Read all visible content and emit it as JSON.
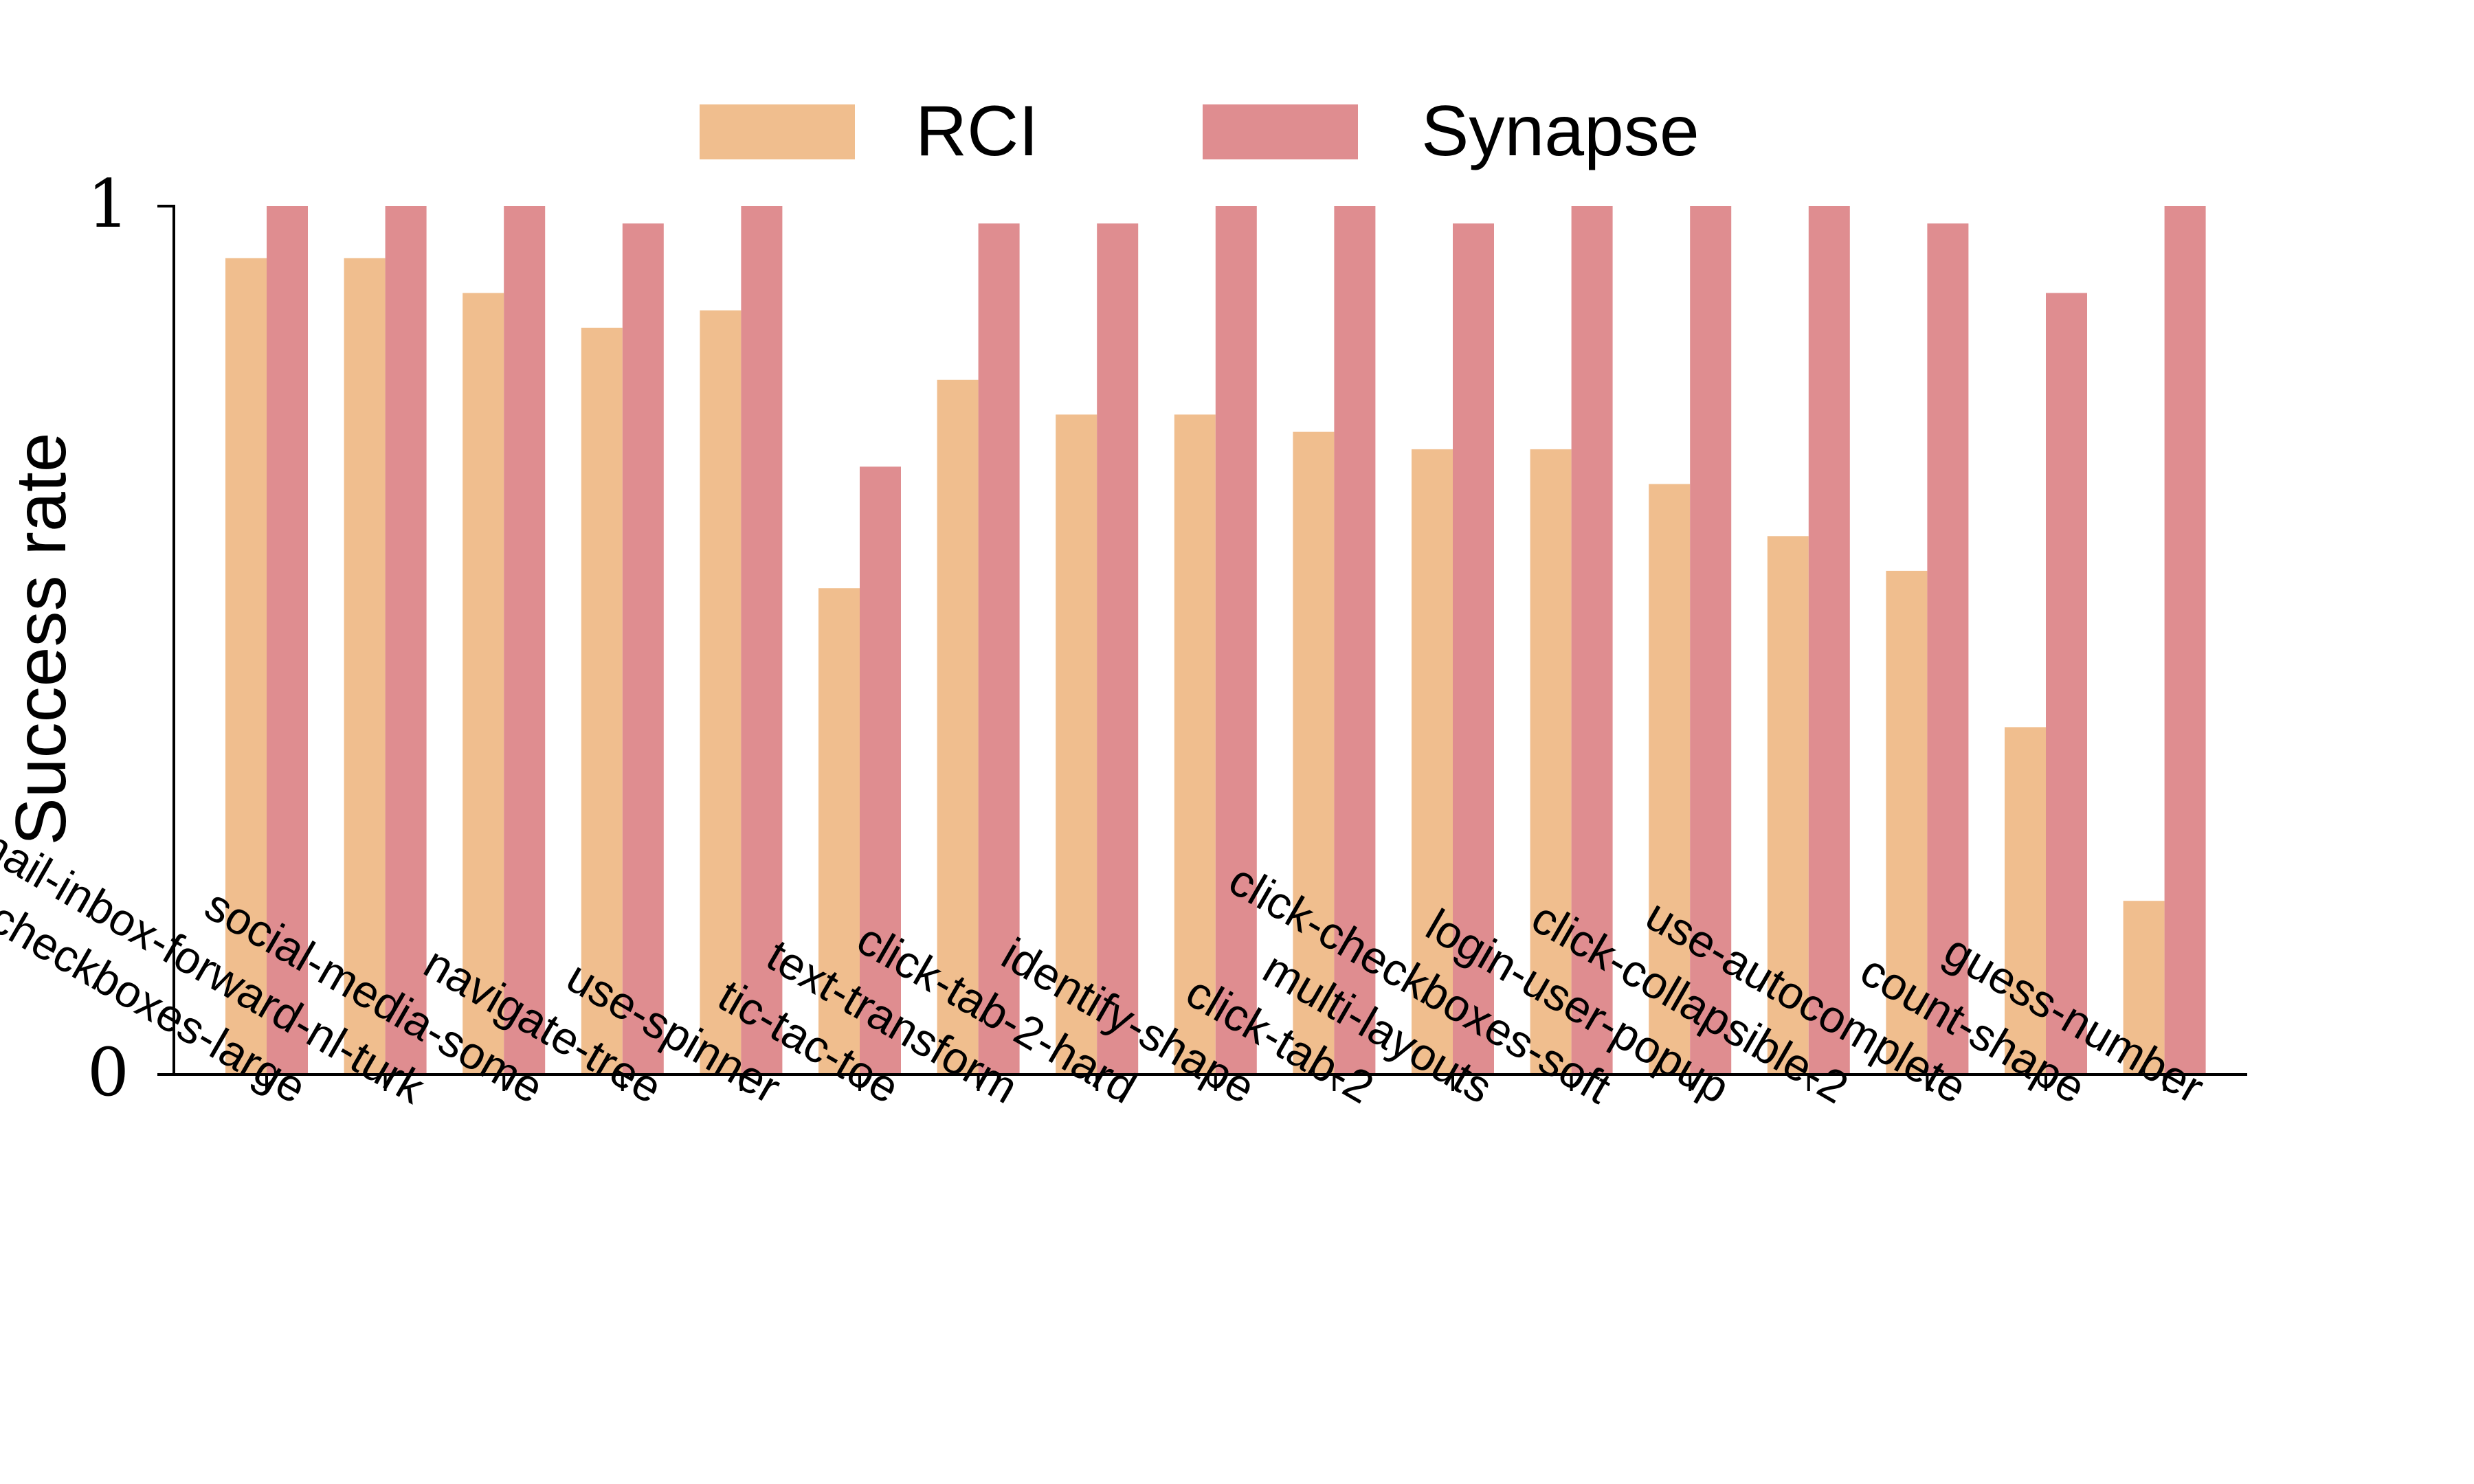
{
  "chart_data": {
    "type": "bar",
    "ylabel": "Success rate",
    "xlabel": "",
    "ylim": [
      0,
      1
    ],
    "yticks": [
      "0",
      "1"
    ],
    "legend_position": "top-center",
    "grid": false,
    "categories": [
      "click-checkboxes-large",
      "email-inbox-forward-nl-turk",
      "social-media-some",
      "navigate-tree",
      "use-spinner",
      "tic-tac-toe",
      "text-transform",
      "click-tab-2-hard",
      "identify-shape",
      "click-tab-2",
      "multi-layouts",
      "click-checkboxes-soft",
      "login-user-popup",
      "click-collapsible-2",
      "use-autocomplete",
      "count-shape",
      "guess-number"
    ],
    "series": [
      {
        "name": "RCI",
        "color": "#f0be8e",
        "values": [
          0.94,
          0.94,
          0.9,
          0.86,
          0.88,
          0.56,
          0.8,
          0.76,
          0.76,
          0.74,
          0.72,
          0.72,
          0.68,
          0.62,
          0.58,
          0.4,
          0.2
        ]
      },
      {
        "name": "Synapse",
        "color": "#df8d90",
        "values": [
          1.0,
          1.0,
          1.0,
          0.98,
          1.0,
          0.7,
          0.98,
          0.98,
          1.0,
          1.0,
          0.98,
          1.0,
          1.0,
          1.0,
          0.98,
          0.9,
          1.0
        ]
      }
    ]
  }
}
